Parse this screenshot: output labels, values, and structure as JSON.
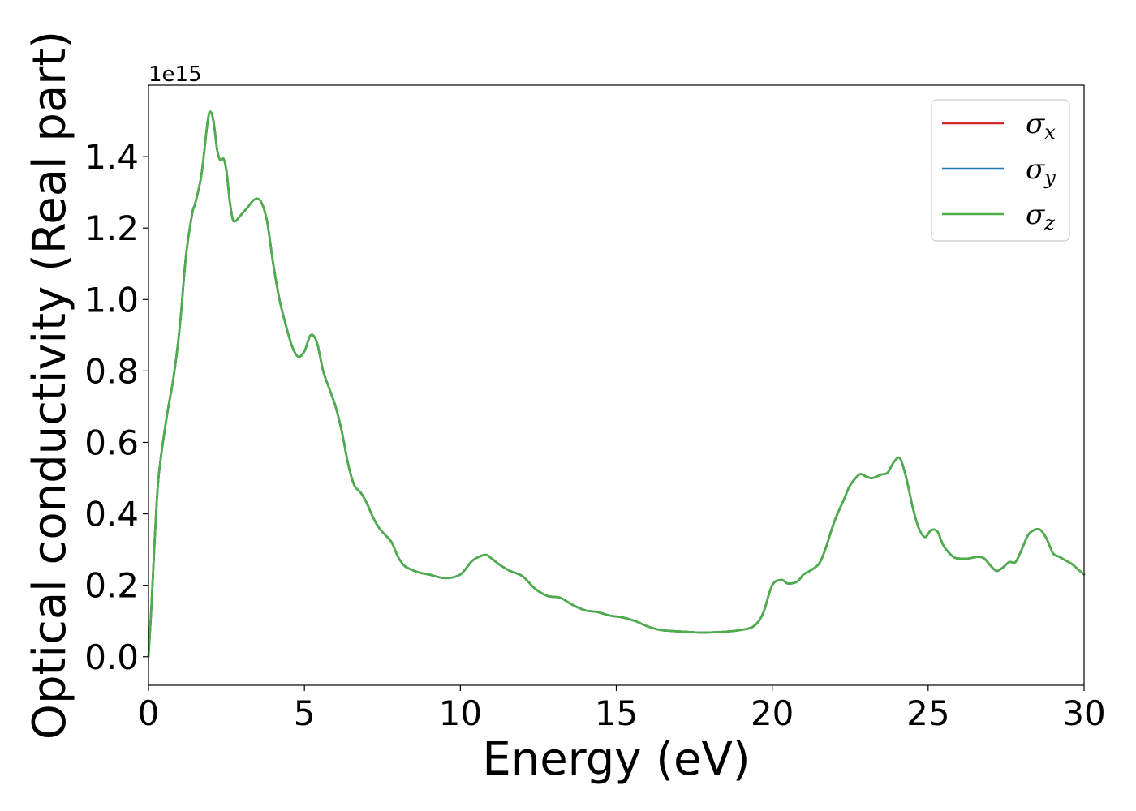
{
  "chart_data": {
    "type": "line",
    "xlabel": "Energy (eV)",
    "ylabel": "Optical conductivity (Real part)",
    "y_offset_label": "1e15",
    "xlim": [
      0,
      30
    ],
    "ylim": [
      -0.08,
      1.6
    ],
    "x_ticks": [
      0,
      5,
      10,
      15,
      20,
      25,
      30
    ],
    "x_tick_labels": [
      "0",
      "5",
      "10",
      "15",
      "20",
      "25",
      "30"
    ],
    "y_ticks": [
      0.0,
      0.2,
      0.4,
      0.6,
      0.8,
      1.0,
      1.2,
      1.4
    ],
    "y_tick_labels": [
      "0.0",
      "0.2",
      "0.4",
      "0.6",
      "0.8",
      "1.0",
      "1.2",
      "1.4"
    ],
    "grid": false,
    "legend_position": "top-right",
    "x": [
      0.0,
      0.1,
      0.2,
      0.3,
      0.4,
      0.6,
      0.8,
      1.0,
      1.2,
      1.4,
      1.5,
      1.7,
      1.9,
      2.0,
      2.1,
      2.2,
      2.3,
      2.4,
      2.5,
      2.6,
      2.7,
      2.8,
      2.9,
      3.0,
      3.2,
      3.4,
      3.6,
      3.8,
      4.0,
      4.2,
      4.4,
      4.6,
      4.8,
      5.0,
      5.2,
      5.4,
      5.6,
      5.8,
      6.0,
      6.2,
      6.4,
      6.6,
      6.8,
      7.0,
      7.2,
      7.4,
      7.6,
      7.8,
      8.0,
      8.2,
      8.4,
      8.7,
      9.0,
      9.5,
      10.0,
      10.4,
      10.8,
      11.0,
      11.3,
      11.6,
      12.0,
      12.4,
      12.8,
      13.2,
      13.6,
      14.0,
      14.4,
      14.8,
      15.2,
      15.6,
      16.0,
      16.4,
      16.8,
      17.2,
      17.6,
      18.0,
      18.5,
      19.0,
      19.4,
      19.7,
      20.0,
      20.3,
      20.5,
      20.8,
      21.0,
      21.2,
      21.5,
      21.7,
      22.0,
      22.3,
      22.5,
      22.8,
      23.0,
      23.2,
      23.5,
      23.7,
      23.9,
      24.1,
      24.3,
      24.5,
      24.7,
      24.9,
      25.1,
      25.3,
      25.5,
      25.8,
      26.0,
      26.3,
      26.6,
      26.8,
      27.0,
      27.2,
      27.4,
      27.6,
      27.8,
      28.0,
      28.2,
      28.4,
      28.6,
      28.8,
      29.0,
      29.2,
      29.4,
      29.6,
      29.8,
      30.0
    ],
    "series": [
      {
        "name": "σx",
        "color": "#d62728",
        "values": [
          0.0,
          0.15,
          0.33,
          0.48,
          0.56,
          0.68,
          0.78,
          0.92,
          1.12,
          1.24,
          1.27,
          1.35,
          1.5,
          1.525,
          1.49,
          1.42,
          1.39,
          1.395,
          1.36,
          1.28,
          1.225,
          1.22,
          1.23,
          1.24,
          1.26,
          1.28,
          1.275,
          1.22,
          1.1,
          1.0,
          0.93,
          0.87,
          0.84,
          0.855,
          0.9,
          0.88,
          0.8,
          0.75,
          0.7,
          0.63,
          0.54,
          0.48,
          0.46,
          0.43,
          0.39,
          0.36,
          0.34,
          0.32,
          0.28,
          0.255,
          0.245,
          0.235,
          0.23,
          0.22,
          0.23,
          0.27,
          0.285,
          0.275,
          0.255,
          0.24,
          0.225,
          0.19,
          0.17,
          0.165,
          0.145,
          0.13,
          0.125,
          0.115,
          0.11,
          0.1,
          0.085,
          0.075,
          0.072,
          0.07,
          0.068,
          0.068,
          0.07,
          0.075,
          0.085,
          0.12,
          0.2,
          0.215,
          0.205,
          0.21,
          0.23,
          0.24,
          0.26,
          0.3,
          0.38,
          0.44,
          0.48,
          0.51,
          0.505,
          0.5,
          0.51,
          0.515,
          0.545,
          0.555,
          0.5,
          0.42,
          0.36,
          0.335,
          0.355,
          0.35,
          0.31,
          0.28,
          0.275,
          0.275,
          0.28,
          0.275,
          0.255,
          0.24,
          0.25,
          0.265,
          0.265,
          0.3,
          0.34,
          0.355,
          0.355,
          0.33,
          0.29,
          0.28,
          0.27,
          0.26,
          0.245,
          0.23
        ]
      },
      {
        "name": "σy",
        "color": "#1f77b4",
        "values": [
          0.0,
          0.15,
          0.33,
          0.48,
          0.56,
          0.68,
          0.78,
          0.92,
          1.12,
          1.24,
          1.27,
          1.35,
          1.5,
          1.525,
          1.49,
          1.42,
          1.39,
          1.395,
          1.36,
          1.28,
          1.225,
          1.22,
          1.23,
          1.24,
          1.26,
          1.28,
          1.275,
          1.22,
          1.1,
          1.0,
          0.93,
          0.87,
          0.84,
          0.855,
          0.9,
          0.88,
          0.8,
          0.75,
          0.7,
          0.63,
          0.54,
          0.48,
          0.46,
          0.43,
          0.39,
          0.36,
          0.34,
          0.32,
          0.28,
          0.255,
          0.245,
          0.235,
          0.23,
          0.22,
          0.23,
          0.27,
          0.285,
          0.275,
          0.255,
          0.24,
          0.225,
          0.19,
          0.17,
          0.165,
          0.145,
          0.13,
          0.125,
          0.115,
          0.11,
          0.1,
          0.085,
          0.075,
          0.072,
          0.07,
          0.068,
          0.068,
          0.07,
          0.075,
          0.085,
          0.12,
          0.2,
          0.215,
          0.205,
          0.21,
          0.23,
          0.24,
          0.26,
          0.3,
          0.38,
          0.44,
          0.48,
          0.51,
          0.505,
          0.5,
          0.51,
          0.515,
          0.545,
          0.555,
          0.5,
          0.42,
          0.36,
          0.335,
          0.355,
          0.35,
          0.31,
          0.28,
          0.275,
          0.275,
          0.28,
          0.275,
          0.255,
          0.24,
          0.25,
          0.265,
          0.265,
          0.3,
          0.34,
          0.355,
          0.355,
          0.33,
          0.29,
          0.28,
          0.27,
          0.26,
          0.245,
          0.23
        ]
      },
      {
        "name": "σz",
        "color": "#4daf4a",
        "values": [
          0.0,
          0.15,
          0.33,
          0.48,
          0.56,
          0.68,
          0.78,
          0.92,
          1.12,
          1.24,
          1.27,
          1.35,
          1.5,
          1.525,
          1.49,
          1.42,
          1.39,
          1.395,
          1.36,
          1.28,
          1.225,
          1.22,
          1.23,
          1.24,
          1.26,
          1.28,
          1.275,
          1.22,
          1.1,
          1.0,
          0.93,
          0.87,
          0.84,
          0.855,
          0.9,
          0.88,
          0.8,
          0.75,
          0.7,
          0.63,
          0.54,
          0.48,
          0.46,
          0.43,
          0.39,
          0.36,
          0.34,
          0.32,
          0.28,
          0.255,
          0.245,
          0.235,
          0.23,
          0.22,
          0.23,
          0.27,
          0.285,
          0.275,
          0.255,
          0.24,
          0.225,
          0.19,
          0.17,
          0.165,
          0.145,
          0.13,
          0.125,
          0.115,
          0.11,
          0.1,
          0.085,
          0.075,
          0.072,
          0.07,
          0.068,
          0.068,
          0.07,
          0.075,
          0.085,
          0.12,
          0.2,
          0.215,
          0.205,
          0.21,
          0.23,
          0.24,
          0.26,
          0.3,
          0.38,
          0.44,
          0.48,
          0.51,
          0.505,
          0.5,
          0.51,
          0.515,
          0.545,
          0.555,
          0.5,
          0.42,
          0.36,
          0.335,
          0.355,
          0.35,
          0.31,
          0.28,
          0.275,
          0.275,
          0.28,
          0.275,
          0.255,
          0.24,
          0.25,
          0.265,
          0.265,
          0.3,
          0.34,
          0.355,
          0.355,
          0.33,
          0.29,
          0.28,
          0.27,
          0.26,
          0.245,
          0.23
        ]
      }
    ],
    "legend": [
      {
        "symbol": "σ",
        "subscript": "x",
        "color": "#d62728"
      },
      {
        "symbol": "σ",
        "subscript": "y",
        "color": "#1f77b4"
      },
      {
        "symbol": "σ",
        "subscript": "z",
        "color": "#4daf4a"
      }
    ]
  }
}
